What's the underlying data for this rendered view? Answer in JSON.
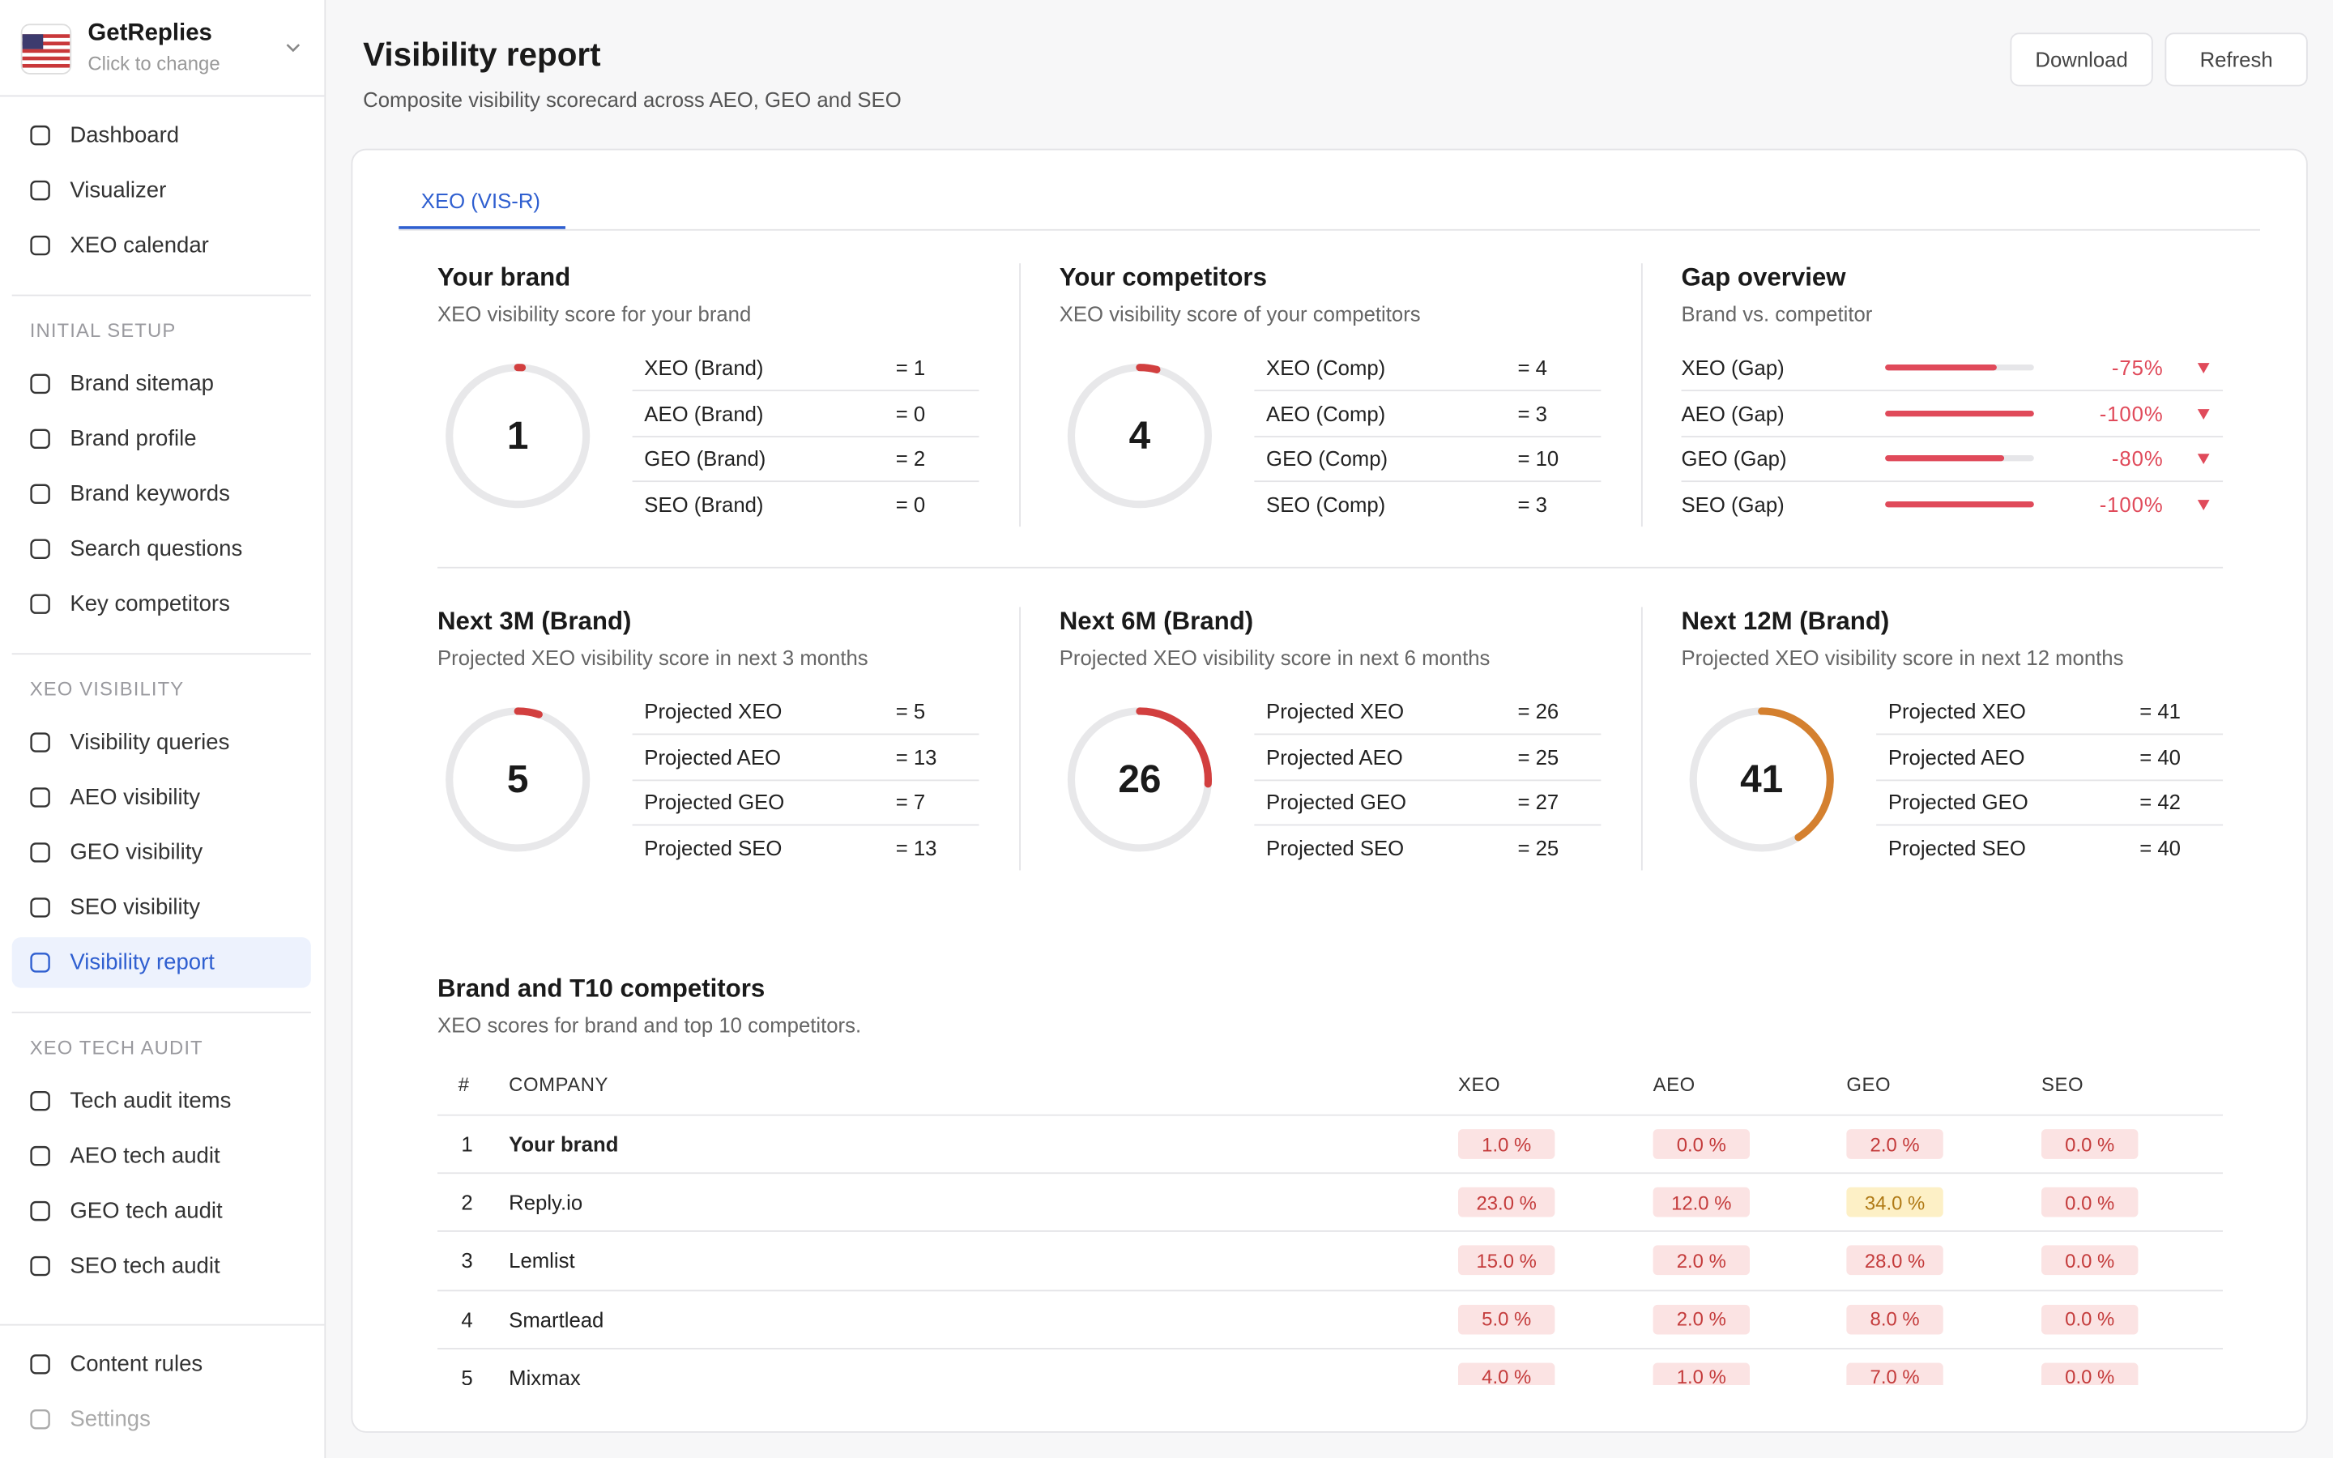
{
  "sidebar": {
    "workspace": {
      "name": "GetReplies",
      "hint": "Click to change"
    },
    "groups": [
      {
        "items": [
          {
            "label": "Dashboard"
          },
          {
            "label": "Visualizer"
          },
          {
            "label": "XEO calendar"
          }
        ]
      },
      {
        "title": "INITIAL SETUP",
        "items": [
          {
            "label": "Brand sitemap"
          },
          {
            "label": "Brand profile"
          },
          {
            "label": "Brand keywords"
          },
          {
            "label": "Search questions"
          },
          {
            "label": "Key competitors"
          }
        ]
      },
      {
        "title": "XEO VISIBILITY",
        "items": [
          {
            "label": "Visibility queries"
          },
          {
            "label": "AEO visibility"
          },
          {
            "label": "GEO visibility"
          },
          {
            "label": "SEO visibility"
          },
          {
            "label": "Visibility report",
            "active": true
          }
        ]
      },
      {
        "title": "XEO TECH AUDIT",
        "items": [
          {
            "label": "Tech audit items"
          },
          {
            "label": "AEO tech audit"
          },
          {
            "label": "GEO tech audit"
          },
          {
            "label": "SEO tech audit"
          }
        ]
      }
    ],
    "footer": [
      {
        "label": "Content rules"
      },
      {
        "label": "Settings",
        "disabled": true
      }
    ]
  },
  "header": {
    "title": "Visibility report",
    "subtitle": "Composite visibility scorecard across AEO, GEO and SEO",
    "buttons": [
      "Download",
      "Refresh"
    ]
  },
  "tabs": [
    {
      "label": "XEO (VIS-R)",
      "active": true
    }
  ],
  "panels": [
    {
      "title": "Your brand",
      "subtitle": "XEO visibility score for your brand",
      "score": 1,
      "color": "#d23f3f",
      "rows": [
        [
          "XEO (Brand)",
          "= 1"
        ],
        [
          "AEO (Brand)",
          "= 0"
        ],
        [
          "GEO (Brand)",
          "= 2"
        ],
        [
          "SEO (Brand)",
          "= 0"
        ]
      ]
    },
    {
      "title": "Your competitors",
      "subtitle": "XEO visibility score of your competitors",
      "score": 4,
      "color": "#d23f3f",
      "rows": [
        [
          "XEO (Comp)",
          "= 4"
        ],
        [
          "AEO (Comp)",
          "= 3"
        ],
        [
          "GEO (Comp)",
          "= 10"
        ],
        [
          "SEO (Comp)",
          "= 3"
        ]
      ]
    },
    {
      "title": "Gap overview",
      "subtitle": "Brand vs. competitor",
      "color": "#e04a5a",
      "gaps": [
        {
          "label": "XEO (Gap)",
          "value": -75,
          "value_label": "-75%"
        },
        {
          "label": "AEO (Gap)",
          "value": -100,
          "value_label": "-100%"
        },
        {
          "label": "GEO (Gap)",
          "value": -80,
          "value_label": "-80%"
        },
        {
          "label": "SEO (Gap)",
          "value": -100,
          "value_label": "-100%"
        }
      ]
    },
    {
      "title": "Next 3M (Brand)",
      "subtitle": "Projected XEO visibility score in next 3 months",
      "score": 5,
      "color": "#d23f3f",
      "rows": [
        [
          "Projected XEO",
          "= 5"
        ],
        [
          "Projected AEO",
          "= 13"
        ],
        [
          "Projected GEO",
          "= 7"
        ],
        [
          "Projected SEO",
          "= 13"
        ]
      ]
    },
    {
      "title": "Next 6M (Brand)",
      "subtitle": "Projected XEO visibility score in next 6 months",
      "score": 26,
      "color": "#d23f3f",
      "rows": [
        [
          "Projected XEO",
          "= 26"
        ],
        [
          "Projected AEO",
          "= 25"
        ],
        [
          "Projected GEO",
          "= 27"
        ],
        [
          "Projected SEO",
          "= 25"
        ]
      ]
    },
    {
      "title": "Next 12M (Brand)",
      "subtitle": "Projected XEO visibility score in next 12 months",
      "score": 41,
      "color": "#d4802f",
      "rows": [
        [
          "Projected XEO",
          "= 41"
        ],
        [
          "Projected AEO",
          "= 40"
        ],
        [
          "Projected GEO",
          "= 42"
        ],
        [
          "Projected SEO",
          "= 40"
        ]
      ]
    }
  ],
  "table": {
    "title": "Brand and T10 competitors",
    "subtitle": "XEO scores for brand and top 10 competitors.",
    "columns": [
      "#",
      "COMPANY",
      "XEO",
      "AEO",
      "GEO",
      "SEO"
    ],
    "badge_color": "#fbe3e3",
    "badge_text_color": "#c43b3b",
    "rows": [
      [
        "1",
        "Your brand",
        "1.0 %",
        "0.0 %",
        "2.0 %",
        "0.0 %"
      ],
      [
        "2",
        "Reply.io",
        "23.0 %",
        "12.0 %",
        {
          "label": "34.0 %",
          "color": "#fdf0c6",
          "text_color": "#b07a16"
        },
        "0.0 %"
      ],
      [
        "3",
        "Lemlist",
        "15.0 %",
        "2.0 %",
        "28.0 %",
        "0.0 %"
      ],
      [
        "4",
        "Smartlead",
        "5.0 %",
        "2.0 %",
        "8.0 %",
        "0.0 %"
      ],
      [
        "5",
        "Mixmax",
        "4.0 %",
        "1.0 %",
        "7.0 %",
        "0.0 %"
      ]
    ]
  }
}
